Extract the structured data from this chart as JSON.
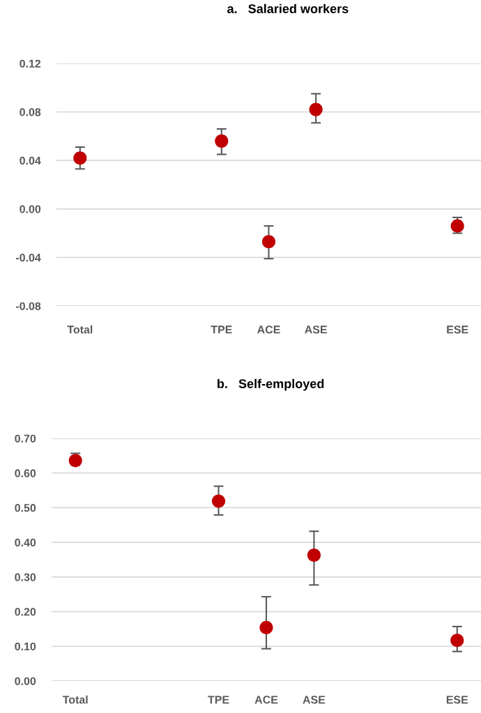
{
  "chart_data": [
    {
      "type": "scatter",
      "title": "a.   Salaried workers",
      "categories": [
        "Total",
        null,
        null,
        "TPE",
        "ACE",
        "ASE",
        null,
        null,
        "ESE"
      ],
      "series": [
        {
          "color": "#c00000",
          "values": [
            0.042,
            null,
            null,
            0.056,
            -0.027,
            0.082,
            null,
            null,
            -0.014
          ],
          "errors": [
            [
              0.033,
              0.051
            ],
            null,
            null,
            [
              0.045,
              0.066
            ],
            [
              -0.041,
              -0.014
            ],
            [
              0.071,
              0.095
            ],
            null,
            null,
            [
              -0.02,
              -0.007
            ]
          ]
        }
      ],
      "ylim": [
        -0.08,
        0.12
      ],
      "yticks": [
        {
          "value": -0.08,
          "label": "-0.08"
        },
        {
          "value": -0.04,
          "label": "-0.04"
        },
        {
          "value": 0.0,
          "label": "0.00"
        },
        {
          "value": 0.04,
          "label": "0.04"
        },
        {
          "value": 0.08,
          "label": "0.08"
        },
        {
          "value": 0.12,
          "label": "0.12"
        }
      ],
      "grid": "y",
      "marker": "circle"
    },
    {
      "type": "scatter",
      "title": "b.   Self-employed",
      "categories": [
        "Total",
        null,
        null,
        "TPE",
        "ACE",
        "ASE",
        null,
        null,
        "ESE"
      ],
      "series": [
        {
          "color": "#c00000",
          "values": [
            0.636,
            null,
            null,
            0.519,
            0.154,
            0.363,
            null,
            null,
            0.117
          ],
          "errors": [
            [
              0.623,
              0.657
            ],
            null,
            null,
            [
              0.479,
              0.562
            ],
            [
              0.093,
              0.243
            ],
            [
              0.277,
              0.432
            ],
            null,
            null,
            [
              0.085,
              0.157
            ]
          ]
        }
      ],
      "ylim": [
        0.0,
        0.7
      ],
      "yticks": [
        {
          "value": 0.0,
          "label": "0.00"
        },
        {
          "value": 0.1,
          "label": "0.10"
        },
        {
          "value": 0.2,
          "label": "0.20"
        },
        {
          "value": 0.3,
          "label": "0.30"
        },
        {
          "value": 0.4,
          "label": "0.40"
        },
        {
          "value": 0.5,
          "label": "0.50"
        },
        {
          "value": 0.6,
          "label": "0.60"
        },
        {
          "value": 0.7,
          "label": "0.70"
        }
      ],
      "grid": "y",
      "marker": "circle"
    }
  ]
}
